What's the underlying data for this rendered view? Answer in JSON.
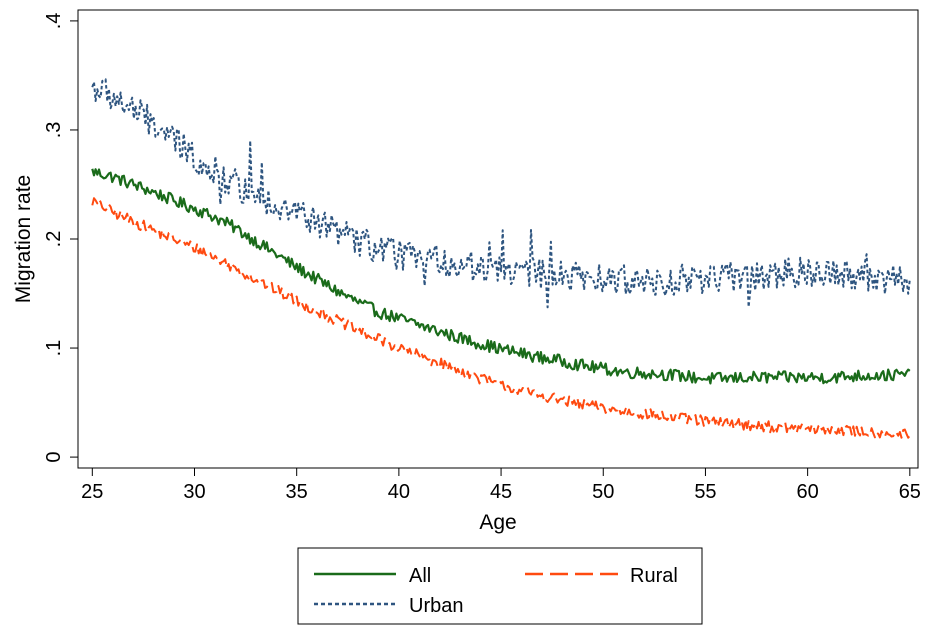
{
  "chart_data": {
    "type": "line",
    "xlabel": "Age",
    "ylabel": "Migration rate",
    "xlim": [
      24.3,
      65.4
    ],
    "ylim": [
      -0.01,
      0.41
    ],
    "x_ticks": [
      25,
      30,
      35,
      40,
      45,
      50,
      55,
      60,
      65
    ],
    "y_ticks": [
      0,
      0.1,
      0.2,
      0.3,
      0.4
    ],
    "y_tick_labels": [
      "0",
      ".1",
      ".2",
      ".3",
      ".4"
    ],
    "grid": false,
    "legend_position": "bottom",
    "series": [
      {
        "name": "All",
        "color": "#1a6b1a",
        "dash": "solid",
        "x": [
          25,
          26,
          27,
          28,
          29,
          30,
          31,
          32,
          33,
          34,
          35,
          36,
          37,
          38,
          39,
          40,
          41,
          42,
          43,
          44,
          45,
          46,
          47,
          48,
          49,
          50,
          51,
          52,
          53,
          54,
          55,
          56,
          57,
          58,
          59,
          60,
          61,
          62,
          63,
          64,
          65
        ],
        "y": [
          0.262,
          0.257,
          0.25,
          0.243,
          0.235,
          0.228,
          0.22,
          0.21,
          0.198,
          0.186,
          0.174,
          0.163,
          0.152,
          0.142,
          0.133,
          0.127,
          0.121,
          0.115,
          0.109,
          0.104,
          0.099,
          0.095,
          0.091,
          0.088,
          0.084,
          0.081,
          0.078,
          0.077,
          0.076,
          0.074,
          0.072,
          0.072,
          0.073,
          0.073,
          0.073,
          0.073,
          0.073,
          0.074,
          0.075,
          0.075,
          0.076
        ]
      },
      {
        "name": "Rural",
        "color": "#ff4a10",
        "dash": "long-dash",
        "x": [
          25,
          26,
          27,
          28,
          29,
          30,
          31,
          32,
          33,
          34,
          35,
          36,
          37,
          38,
          39,
          40,
          41,
          42,
          43,
          44,
          45,
          46,
          47,
          48,
          49,
          50,
          51,
          52,
          53,
          54,
          55,
          56,
          57,
          58,
          59,
          60,
          61,
          62,
          63,
          64,
          65
        ],
        "y": [
          0.235,
          0.225,
          0.216,
          0.208,
          0.2,
          0.192,
          0.183,
          0.173,
          0.163,
          0.153,
          0.143,
          0.134,
          0.125,
          0.116,
          0.108,
          0.1,
          0.093,
          0.086,
          0.079,
          0.072,
          0.066,
          0.061,
          0.056,
          0.052,
          0.048,
          0.045,
          0.042,
          0.04,
          0.037,
          0.035,
          0.033,
          0.031,
          0.03,
          0.028,
          0.027,
          0.026,
          0.025,
          0.024,
          0.023,
          0.022,
          0.02
        ]
      },
      {
        "name": "Urban",
        "color": "#2e5580",
        "dash": "short-dash",
        "x": [
          25,
          26,
          27,
          28,
          29,
          30,
          31,
          32,
          33,
          34,
          35,
          36,
          37,
          38,
          39,
          40,
          41,
          42,
          43,
          44,
          45,
          46,
          47,
          48,
          49,
          50,
          51,
          52,
          53,
          54,
          55,
          56,
          57,
          58,
          59,
          60,
          61,
          62,
          63,
          64,
          65
        ],
        "y": [
          0.34,
          0.33,
          0.318,
          0.305,
          0.29,
          0.275,
          0.262,
          0.25,
          0.24,
          0.232,
          0.224,
          0.215,
          0.207,
          0.198,
          0.19,
          0.186,
          0.183,
          0.18,
          0.177,
          0.174,
          0.172,
          0.17,
          0.168,
          0.166,
          0.164,
          0.163,
          0.162,
          0.162,
          0.162,
          0.163,
          0.164,
          0.165,
          0.166,
          0.167,
          0.168,
          0.17,
          0.171,
          0.169,
          0.166,
          0.163,
          0.16
        ]
      }
    ]
  }
}
